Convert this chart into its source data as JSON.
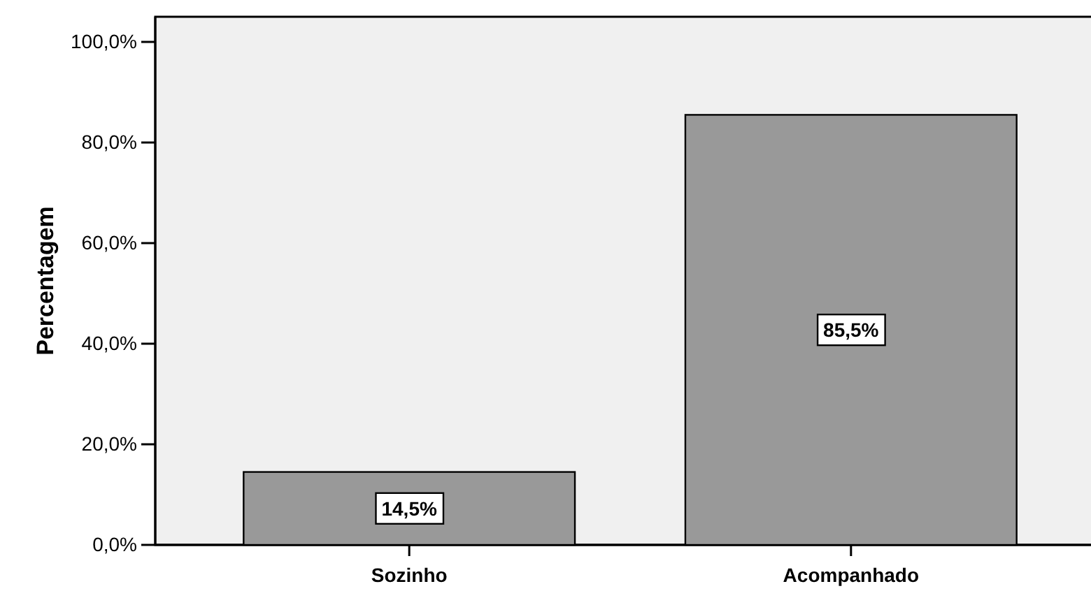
{
  "chart_data": {
    "type": "bar",
    "ylabel": "Percentagem",
    "categories": [
      "Sozinho",
      "Acompanhado"
    ],
    "values": [
      14.5,
      85.5
    ],
    "color": "#999999",
    "value_labels": [
      "14,5%",
      "85,5%"
    ],
    "ylim": [
      0,
      105
    ],
    "yticks": [
      {
        "value": 0,
        "label": "0,0%"
      },
      {
        "value": 20,
        "label": "20,0%"
      },
      {
        "value": 40,
        "label": "40,0%"
      },
      {
        "value": 60,
        "label": "60,0%"
      },
      {
        "value": 80,
        "label": "80,0%"
      },
      {
        "value": 100,
        "label": "100,0%"
      }
    ],
    "grid": false
  }
}
